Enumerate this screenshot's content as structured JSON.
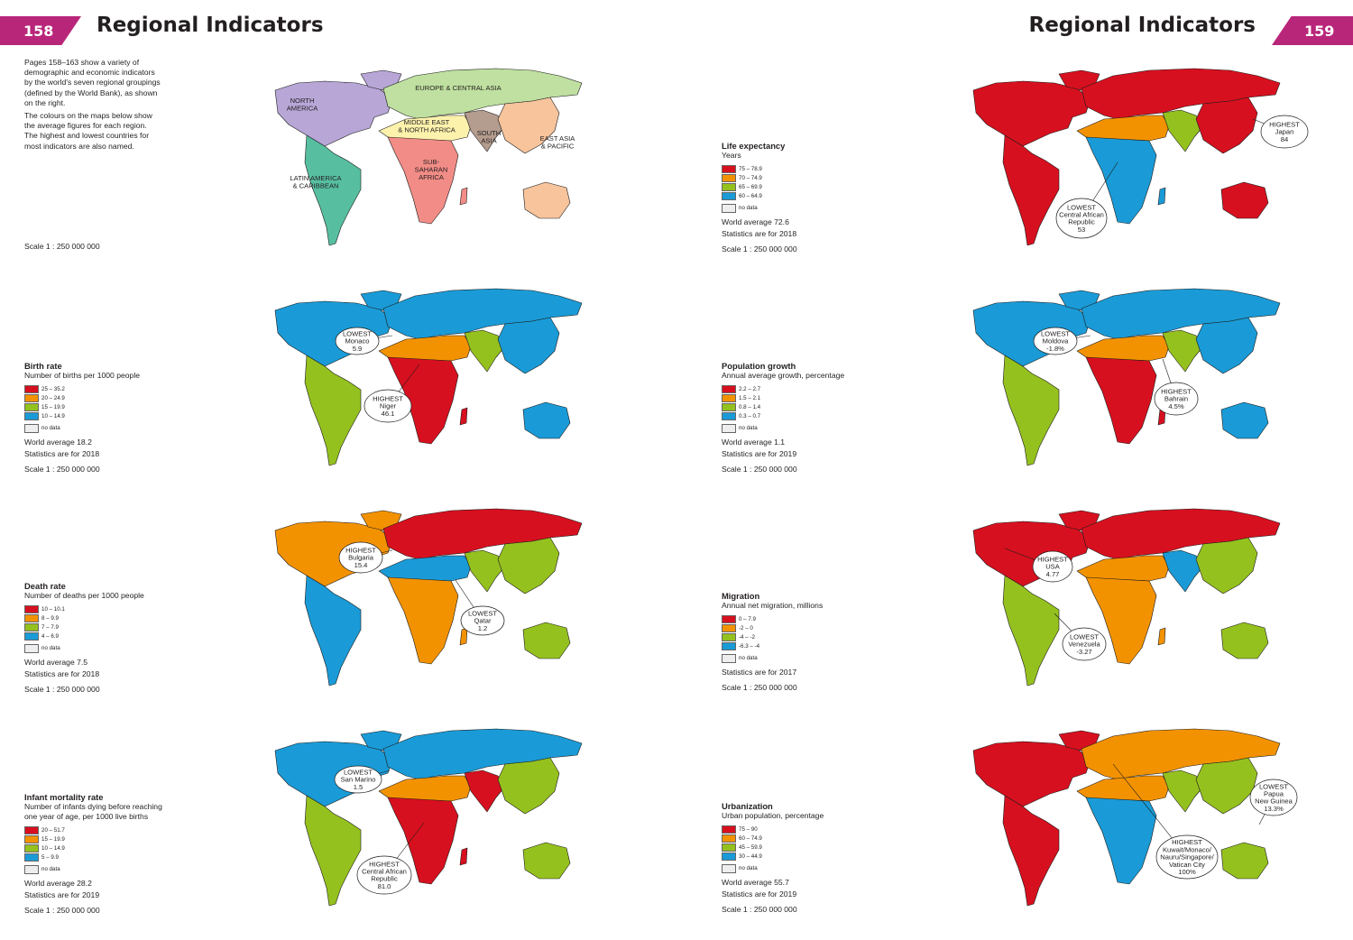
{
  "pages": {
    "left": {
      "number": "158",
      "title": "Regional Indicators"
    },
    "right": {
      "number": "159",
      "title": "Regional Indicators"
    }
  },
  "intro": {
    "p1": [
      "Pages 158–163 show a variety of",
      "demographic and economic indicators",
      "by the world's seven regional groupings",
      "(defined by the World Bank), as shown",
      "on the right."
    ],
    "p2": [
      "The colours on the maps below show",
      "the average figures for each region.",
      "The highest and lowest countries for",
      "most indicators are also named."
    ],
    "scale": "Scale 1 : 250 000 000"
  },
  "region_map": {
    "labels": {
      "na": [
        "NORTH",
        "AMERICA"
      ],
      "eca": [
        "EUROPE & CENTRAL ASIA"
      ],
      "mena": [
        "MIDDLE EAST",
        "& NORTH AFRICA"
      ],
      "sa": [
        "SOUTH",
        "ASIA"
      ],
      "eap": [
        "EAST ASIA",
        "& PACIFIC"
      ],
      "lac": [
        "LATIN AMERICA",
        "& CARIBBEAN"
      ],
      "ssa": [
        "SUB-",
        "SAHARAN",
        "AFRICA"
      ]
    },
    "colors": {
      "na": "#b7a6d6",
      "eca": "#bfe0a0",
      "mena": "#fdf2ac",
      "sa": "#b49c8e",
      "eap": "#f8c49c",
      "lac": "#57bfa0",
      "ssa": "#f28c86"
    }
  },
  "colors": {
    "c1": "#d7101f",
    "c2": "#f39200",
    "c3": "#95c11f",
    "c4": "#1a9bd7",
    "nodata": "#eeeeee"
  },
  "maps": [
    {
      "id": "life-expectancy",
      "title": "Life expectancy",
      "subtitle": [
        "Years"
      ],
      "legend": [
        "75 – 78.9",
        "70 – 74.9",
        "65 – 69.9",
        "60 – 64.9"
      ],
      "no_data": "no data",
      "footer": [
        "World average 72.6",
        "Statistics are for 2018"
      ],
      "scale": "Scale 1 : 250 000 000",
      "region_classes": {
        "na": "c1",
        "eca": "c1",
        "mena": "c2",
        "sa": "c3",
        "eap": "c1",
        "lac": "c1",
        "ssa": "c4"
      },
      "callouts": [
        {
          "kind": "HIGHEST",
          "lines": [
            "HIGHEST",
            "Japan",
            "84"
          ]
        },
        {
          "kind": "LOWEST",
          "lines": [
            "LOWEST",
            "Central African",
            "Republic",
            "53"
          ]
        }
      ]
    },
    {
      "id": "birth-rate",
      "title": "Birth rate",
      "subtitle": [
        "Number of births per 1000 people"
      ],
      "legend": [
        "25 – 35.2",
        "20 – 24.9",
        "15 – 19.9",
        "10 – 14.9"
      ],
      "no_data": "no data",
      "footer": [
        "World average 18.2",
        "Statistics are for 2018"
      ],
      "scale": "Scale 1 : 250 000 000",
      "region_classes": {
        "na": "c4",
        "eca": "c4",
        "mena": "c2",
        "sa": "c3",
        "eap": "c4",
        "lac": "c3",
        "ssa": "c1"
      },
      "callouts": [
        {
          "kind": "LOWEST",
          "lines": [
            "LOWEST",
            "Monaco",
            "5.9"
          ]
        },
        {
          "kind": "HIGHEST",
          "lines": [
            "HIGHEST",
            "Niger",
            "46.1"
          ]
        }
      ]
    },
    {
      "id": "population-growth",
      "title": "Population growth",
      "subtitle": [
        "Annual average growth, percentage"
      ],
      "legend": [
        "2.2 – 2.7",
        "1.5 – 2.1",
        "0.8 – 1.4",
        "0.3 – 0.7"
      ],
      "no_data": "no data",
      "footer": [
        "World average 1.1",
        "Statistics are for 2019"
      ],
      "scale": "Scale 1 : 250 000 000",
      "region_classes": {
        "na": "c4",
        "eca": "c4",
        "mena": "c2",
        "sa": "c3",
        "eap": "c4",
        "lac": "c3",
        "ssa": "c1"
      },
      "callouts": [
        {
          "kind": "LOWEST",
          "lines": [
            "LOWEST",
            "Moldova",
            "-1.8%"
          ]
        },
        {
          "kind": "HIGHEST",
          "lines": [
            "HIGHEST",
            "Bahrain",
            "4.5%"
          ]
        }
      ]
    },
    {
      "id": "death-rate",
      "title": "Death rate",
      "subtitle": [
        "Number of deaths per 1000 people"
      ],
      "legend": [
        "10 – 10.1",
        "8 – 9.9",
        "7 – 7.9",
        "4 – 6.9"
      ],
      "no_data": "no data",
      "footer": [
        "World average 7.5",
        "Statistics are for 2018"
      ],
      "scale": "Scale 1 : 250 000 000",
      "region_classes": {
        "na": "c2",
        "eca": "c1",
        "mena": "c4",
        "sa": "c3",
        "eap": "c3",
        "lac": "c4",
        "ssa": "c2"
      },
      "callouts": [
        {
          "kind": "HIGHEST",
          "lines": [
            "HIGHEST",
            "Bulgaria",
            "15.4"
          ]
        },
        {
          "kind": "LOWEST",
          "lines": [
            "LOWEST",
            "Qatar",
            "1.2"
          ]
        }
      ]
    },
    {
      "id": "migration",
      "title": "Migration",
      "subtitle": [
        "Annual net migration, millions"
      ],
      "legend": [
        "0 – 7.9",
        "-2 – 0",
        "-4 – -2",
        "-6.3 – -4"
      ],
      "no_data": "no data",
      "footer": [
        "Statistics are for 2017"
      ],
      "scale": "Scale 1 : 250 000 000",
      "region_classes": {
        "na": "c1",
        "eca": "c1",
        "mena": "c2",
        "sa": "c4",
        "eap": "c3",
        "lac": "c3",
        "ssa": "c2"
      },
      "callouts": [
        {
          "kind": "HIGHEST",
          "lines": [
            "HIGHEST",
            "USA",
            "4.77"
          ]
        },
        {
          "kind": "LOWEST",
          "lines": [
            "LOWEST",
            "Venezuela",
            "-3.27"
          ]
        }
      ]
    },
    {
      "id": "infant-mortality",
      "title": "Infant mortality rate",
      "subtitle": [
        "Number of infants dying before reaching",
        "one year of age, per 1000 live births"
      ],
      "legend": [
        "20 – 51.7",
        "15 – 19.9",
        "10 – 14.9",
        "5 – 9.9"
      ],
      "no_data": "no data",
      "footer": [
        "World average 28.2",
        "Statistics are for 2019"
      ],
      "scale": "Scale 1 : 250 000 000",
      "region_classes": {
        "na": "c4",
        "eca": "c4",
        "mena": "c2",
        "sa": "c1",
        "eap": "c3",
        "lac": "c3",
        "ssa": "c1"
      },
      "callouts": [
        {
          "kind": "LOWEST",
          "lines": [
            "LOWEST",
            "San Marino",
            "1.5"
          ]
        },
        {
          "kind": "HIGHEST",
          "lines": [
            "HIGHEST",
            "Central African",
            "Republic",
            "81.0"
          ]
        }
      ]
    },
    {
      "id": "urbanization",
      "title": "Urbanization",
      "subtitle": [
        "Urban population, percentage"
      ],
      "legend": [
        "75 – 90",
        "60 – 74.9",
        "45 – 59.9",
        "30 – 44.9"
      ],
      "no_data": "no data",
      "footer": [
        "World average 55.7",
        "Statistics are for 2019"
      ],
      "scale": "Scale 1 : 250 000 000",
      "region_classes": {
        "na": "c1",
        "eca": "c2",
        "mena": "c2",
        "sa": "c3",
        "eap": "c3",
        "lac": "c1",
        "ssa": "c4"
      },
      "callouts": [
        {
          "kind": "LOWEST",
          "lines": [
            "LOWEST",
            "Papua",
            "New Guinea",
            "13.3%"
          ]
        },
        {
          "kind": "HIGHEST",
          "lines": [
            "HIGHEST",
            "Kuwait/Monaco/",
            "Nauru/Singapore/",
            "Vatican City",
            "100%"
          ]
        }
      ]
    }
  ]
}
